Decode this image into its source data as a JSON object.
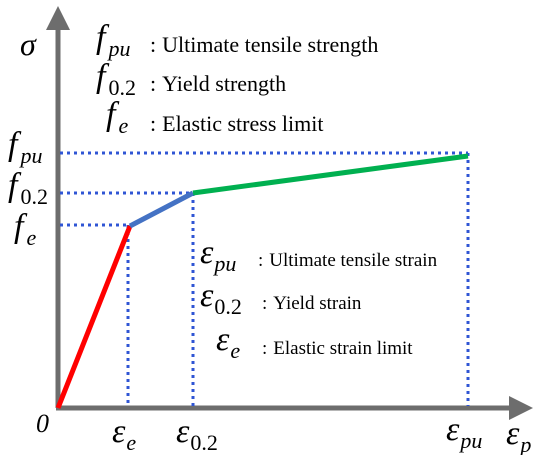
{
  "axes": {
    "y_symbol": "σ",
    "x_symbol": "ε",
    "x_subscript": "p",
    "origin": "0"
  },
  "stress_labels": [
    {
      "symbol": "f",
      "subscript": "pu"
    },
    {
      "symbol": "f",
      "subscript": "0.2"
    },
    {
      "symbol": "f",
      "subscript": "e"
    }
  ],
  "strain_labels": [
    {
      "symbol": "ε",
      "subscript": "e"
    },
    {
      "symbol": "ε",
      "subscript": "0.2"
    },
    {
      "symbol": "ε",
      "subscript": "pu"
    }
  ],
  "stress_legend": [
    {
      "symbol": "f",
      "subscript": "pu",
      "sep": ":",
      "text": "Ultimate tensile strength"
    },
    {
      "symbol": "f",
      "subscript": "0.2",
      "sep": ":",
      "text": "Yield strength"
    },
    {
      "symbol": "f",
      "subscript": "e",
      "sep": ":",
      "text": "Elastic stress limit"
    }
  ],
  "strain_legend": [
    {
      "symbol": "ε",
      "subscript": "pu",
      "sep": ":",
      "text": "Ultimate tensile strain"
    },
    {
      "symbol": "ε",
      "subscript": "0.2",
      "sep": ":",
      "text": "Yield strain"
    },
    {
      "symbol": "ε",
      "subscript": "e",
      "sep": ":",
      "text": "Elastic strain limit"
    }
  ],
  "colors": {
    "axis": "#6d6d6d",
    "elastic_segment": "#ff0000",
    "transition_segment": "#4472c4",
    "plastic_segment": "#00b050",
    "guide_lines": "#2f55d4"
  }
}
